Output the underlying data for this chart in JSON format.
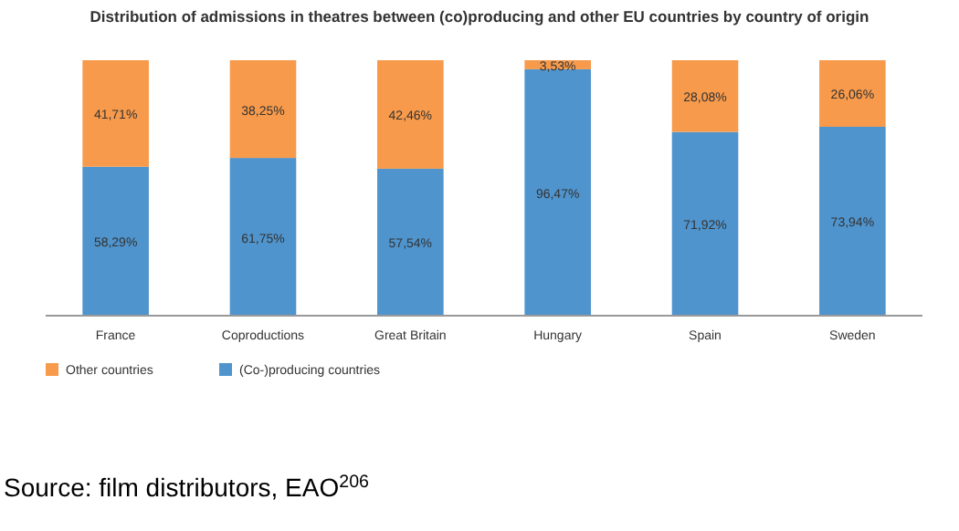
{
  "chart_data": {
    "type": "bar",
    "stacked": true,
    "title": "Distribution of admissions in theatres between (co)producing and other EU countries by country of origin",
    "categories": [
      "France",
      "Coproductions",
      "Great Britain",
      "Hungary",
      "Spain",
      "Sweden"
    ],
    "ylim": [
      0,
      100
    ],
    "tick_labels": "x",
    "legend": "bottom",
    "annotations": [
      "Source: film distributors, EAO$^{206}$"
    ],
    "series": [
      {
        "name": "(Co-)producing countries",
        "color": "#4f94cd",
        "values": [
          58.29,
          61.75,
          57.54,
          96.47,
          71.92,
          73.94
        ],
        "value_labels": [
          "58,29%",
          "61,75%",
          "57,54%",
          "96,47%",
          "71,92%",
          "73,94%"
        ]
      },
      {
        "name": "Other countries",
        "color": "#f79a4b",
        "values": [
          41.71,
          38.25,
          42.46,
          3.53,
          28.08,
          26.06
        ],
        "value_labels": [
          "41,71%",
          "38,25%",
          "42,46%",
          "3,53%",
          "28,08%",
          "26,06%"
        ]
      }
    ]
  }
}
